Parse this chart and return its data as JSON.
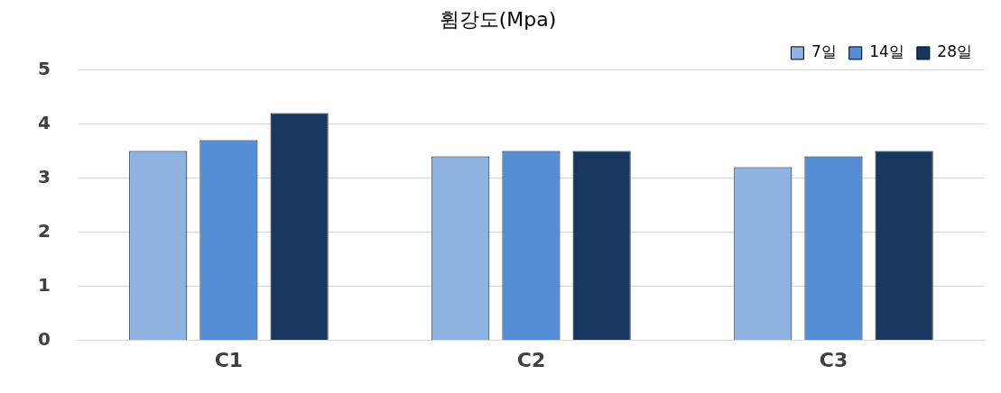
{
  "chart_data": {
    "type": "bar",
    "title": "휨강도(Mpa)",
    "categories": [
      "C1",
      "C2",
      "C3"
    ],
    "series": [
      {
        "name": "7일",
        "color": "#8db3e2",
        "values": [
          3.5,
          3.4,
          3.2
        ]
      },
      {
        "name": "14일",
        "color": "#558ed5",
        "values": [
          3.7,
          3.5,
          3.4
        ]
      },
      {
        "name": "28일",
        "color": "#17375e",
        "values": [
          4.2,
          3.5,
          3.5
        ]
      }
    ],
    "ylim": [
      0,
      5
    ],
    "yticks": [
      0,
      1,
      2,
      3,
      4,
      5
    ],
    "grid": "y",
    "legend": "top right"
  }
}
